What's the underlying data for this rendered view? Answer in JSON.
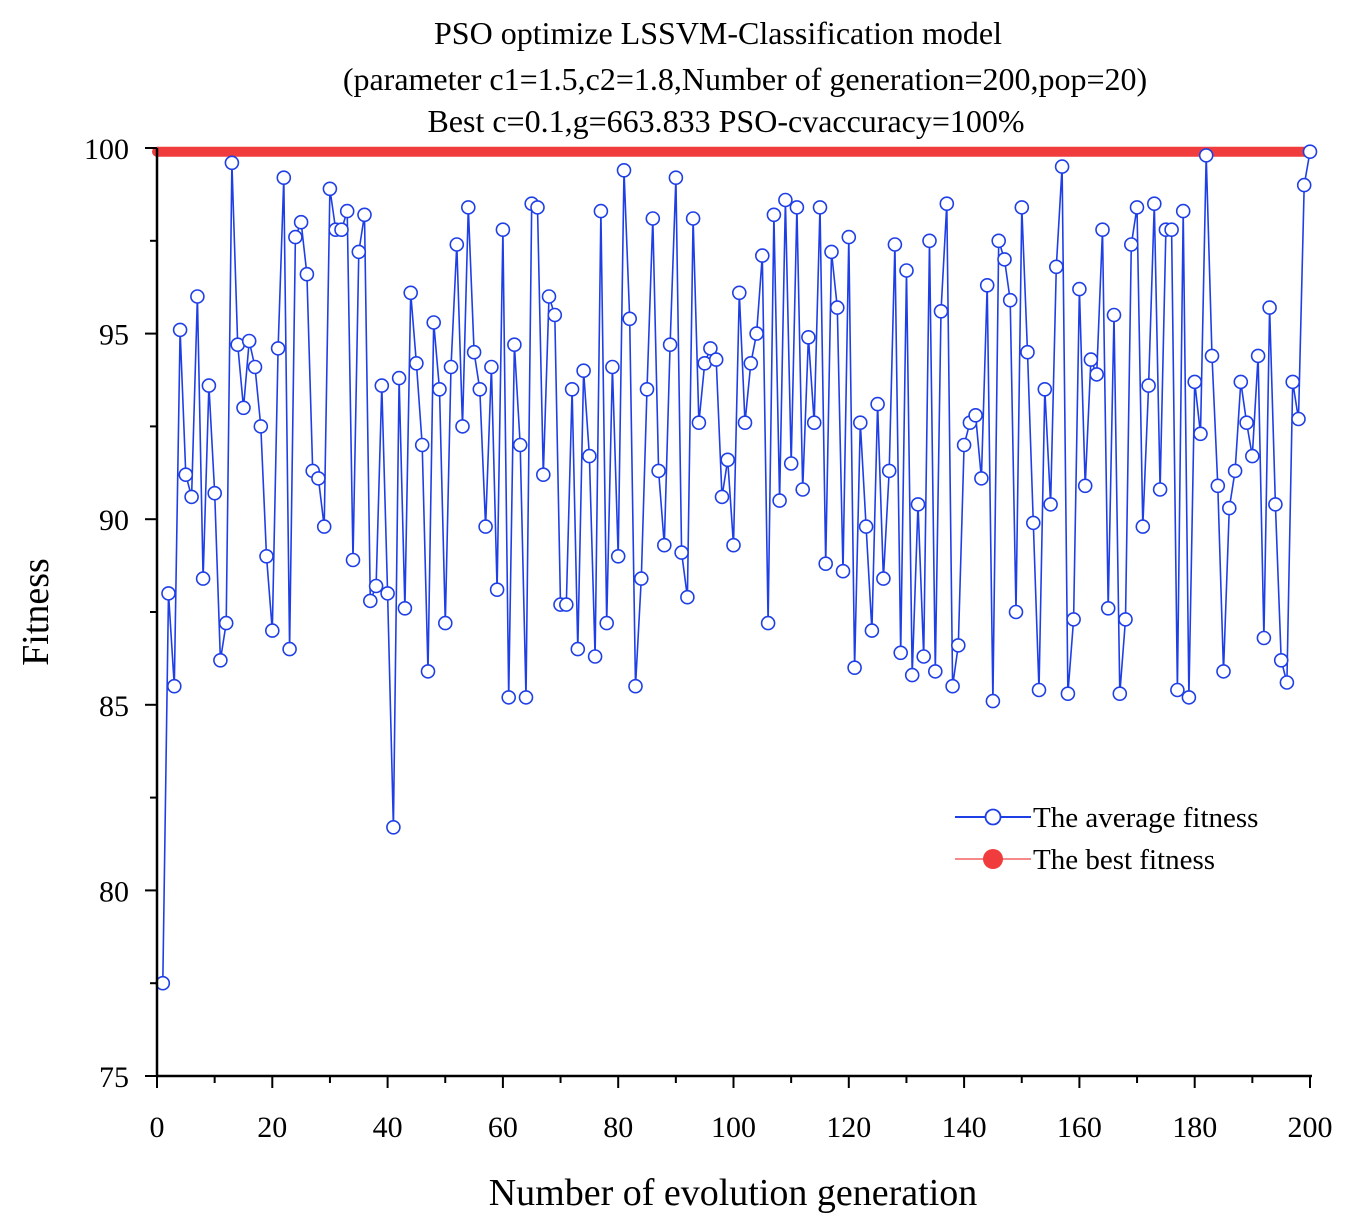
{
  "chart_data": {
    "type": "line",
    "title": [
      "PSO optimize LSSVM-Classification model",
      "(parameter c1=1.5,c2=1.8,Number of generation=200,pop=20)",
      "Best c=0.1,g=663.833 PSO-cvaccuracy=100%"
    ],
    "xlabel": "Number of evolution generation",
    "ylabel": "Fitness",
    "xlim": [
      0,
      200
    ],
    "ylim": [
      75,
      100
    ],
    "xticks": [
      0,
      20,
      40,
      60,
      80,
      100,
      120,
      140,
      160,
      180,
      200
    ],
    "yticks": [
      75,
      80,
      85,
      90,
      95,
      100
    ],
    "x_minor_step": 10,
    "y_minor_step": 2.5,
    "grid": false,
    "legend_position": "right-middle",
    "colors": {
      "average": "#1f3fe6",
      "best": "#f03c3c",
      "marker_fill": "#ffffff",
      "axis": "#000000"
    },
    "series": [
      {
        "name": "The average fitness",
        "marker": "open-circle",
        "x": [
          1,
          2,
          3,
          4,
          5,
          6,
          7,
          8,
          9,
          10,
          11,
          12,
          13,
          14,
          15,
          16,
          17,
          18,
          19,
          20,
          21,
          22,
          23,
          24,
          25,
          26,
          27,
          28,
          29,
          30,
          31,
          32,
          33,
          34,
          35,
          36,
          37,
          38,
          39,
          40,
          41,
          42,
          43,
          44,
          45,
          46,
          47,
          48,
          49,
          50,
          51,
          52,
          53,
          54,
          55,
          56,
          57,
          58,
          59,
          60,
          61,
          62,
          63,
          64,
          65,
          66,
          67,
          68,
          69,
          70,
          71,
          72,
          73,
          74,
          75,
          76,
          77,
          78,
          79,
          80,
          81,
          82,
          83,
          84,
          85,
          86,
          87,
          88,
          89,
          90,
          91,
          92,
          93,
          94,
          95,
          96,
          97,
          98,
          99,
          100,
          101,
          102,
          103,
          104,
          105,
          106,
          107,
          108,
          109,
          110,
          111,
          112,
          113,
          114,
          115,
          116,
          117,
          118,
          119,
          120,
          121,
          122,
          123,
          124,
          125,
          126,
          127,
          128,
          129,
          130,
          131,
          132,
          133,
          134,
          135,
          136,
          137,
          138,
          139,
          140,
          141,
          142,
          143,
          144,
          145,
          146,
          147,
          148,
          149,
          150,
          151,
          152,
          153,
          154,
          155,
          156,
          157,
          158,
          159,
          160,
          161,
          162,
          163,
          164,
          165,
          166,
          167,
          168,
          169,
          170,
          171,
          172,
          173,
          174,
          175,
          176,
          177,
          178,
          179,
          180,
          181,
          182,
          183,
          184,
          185,
          186,
          187,
          188,
          189,
          190,
          191,
          192,
          193,
          194,
          195,
          196,
          197,
          198,
          199,
          200
        ],
        "y": [
          77.5,
          88.0,
          85.5,
          95.1,
          91.2,
          90.6,
          96.0,
          88.4,
          93.6,
          90.7,
          86.2,
          87.2,
          99.6,
          94.7,
          93.0,
          94.8,
          94.1,
          92.5,
          89.0,
          87.0,
          94.6,
          99.2,
          86.5,
          97.6,
          98.0,
          96.6,
          91.3,
          91.1,
          89.8,
          98.9,
          97.8,
          97.8,
          98.3,
          88.9,
          97.2,
          98.2,
          87.8,
          88.2,
          93.6,
          88.0,
          81.7,
          93.8,
          87.6,
          96.1,
          94.2,
          92.0,
          85.9,
          95.3,
          93.5,
          87.2,
          94.1,
          97.4,
          92.5,
          98.4,
          94.5,
          93.5,
          89.8,
          94.1,
          88.1,
          97.8,
          85.2,
          94.7,
          92.0,
          85.2,
          98.5,
          98.4,
          91.2,
          96.0,
          95.5,
          87.7,
          87.7,
          93.5,
          86.5,
          94.0,
          91.7,
          86.3,
          98.3,
          87.2,
          94.1,
          89.0,
          99.4,
          95.4,
          85.5,
          88.4,
          93.5,
          98.1,
          91.3,
          89.3,
          94.7,
          99.2,
          89.1,
          87.9,
          98.1,
          92.6,
          94.2,
          94.6,
          94.3,
          90.6,
          91.6,
          89.3,
          96.1,
          92.6,
          94.2,
          95.0,
          97.1,
          87.2,
          98.2,
          90.5,
          98.6,
          91.5,
          98.4,
          90.8,
          94.9,
          92.6,
          98.4,
          88.8,
          97.2,
          95.7,
          88.6,
          97.6,
          86.0,
          92.6,
          89.8,
          87.0,
          93.1,
          88.4,
          91.3,
          97.4,
          86.4,
          96.7,
          85.8,
          90.4,
          86.3,
          97.5,
          85.9,
          95.6,
          98.5,
          85.5,
          86.6,
          92.0,
          92.6,
          92.8,
          91.1,
          96.3,
          85.1,
          97.5,
          97.0,
          95.9,
          87.5,
          98.4,
          94.5,
          89.9,
          85.4,
          93.5,
          90.4,
          96.8,
          99.5,
          85.3,
          87.3,
          96.2,
          90.9,
          94.3,
          93.9,
          97.8,
          87.6,
          95.5,
          85.3,
          87.3,
          97.4,
          98.4,
          89.8,
          93.6,
          98.5,
          90.8,
          97.8,
          97.8,
          85.4,
          98.3,
          85.2,
          93.7,
          92.3,
          99.8,
          94.4,
          90.9,
          85.9,
          90.3,
          91.3,
          93.7,
          92.6,
          91.7,
          94.4,
          86.8,
          95.7,
          90.4,
          86.2,
          85.6,
          93.7,
          92.7,
          99.0,
          99.9
        ]
      },
      {
        "name": "The best fitness",
        "marker": "filled-circle",
        "x": [
          0,
          200
        ],
        "y": [
          99.9,
          99.9
        ]
      }
    ]
  }
}
